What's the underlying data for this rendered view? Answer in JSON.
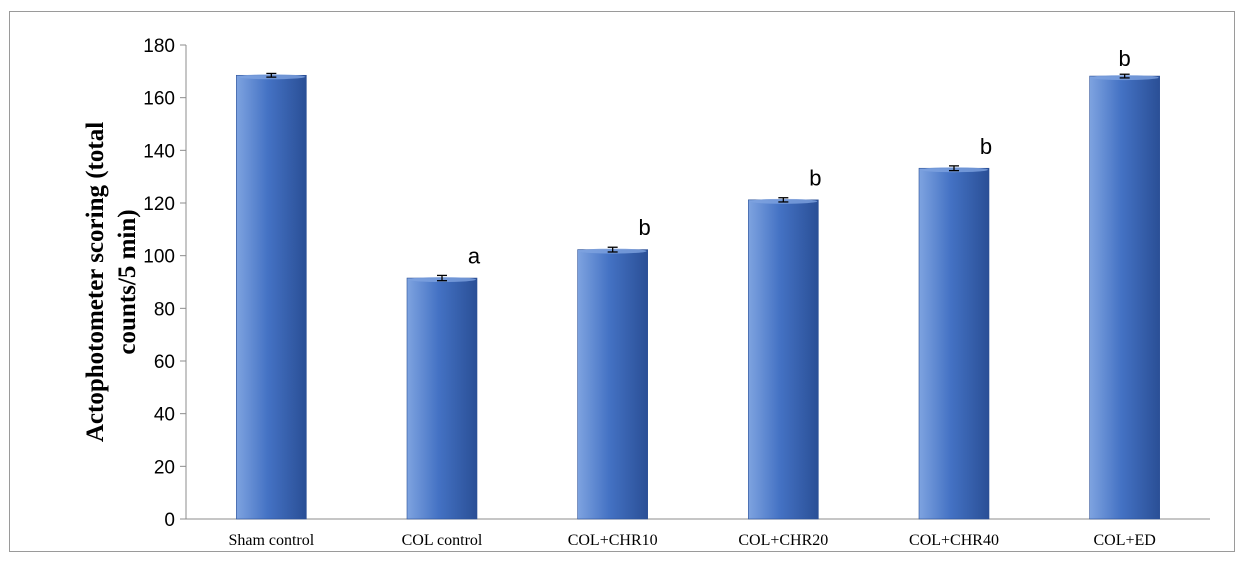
{
  "chart_data": {
    "type": "bar",
    "title": "",
    "xlabel": "",
    "ylabel_lines": [
      "Actophotometer scoring (total",
      "counts/5 min)"
    ],
    "categories": [
      "Sham control",
      "COL control",
      "COL+CHR10",
      "COL+CHR20",
      "COL+CHR40",
      "COL+ED"
    ],
    "values": [
      168.5,
      91.5,
      102.3,
      121.2,
      133.2,
      168.2
    ],
    "errors": [
      0.7,
      1.0,
      0.9,
      0.8,
      0.9,
      0.7
    ],
    "significance": [
      "",
      "a",
      "b",
      "b",
      "b",
      "b"
    ],
    "ylim": [
      0,
      180
    ],
    "yticks": [
      "0",
      "20",
      "40",
      "60",
      "80",
      "100",
      "120",
      "140",
      "160",
      "180"
    ],
    "grid": false,
    "legend": "none",
    "colors": {
      "bar_fill": "#4472c4",
      "bar_light": "#7ea3e0",
      "bar_dark": "#2a4f96",
      "axis": "#8c8c8c"
    }
  }
}
